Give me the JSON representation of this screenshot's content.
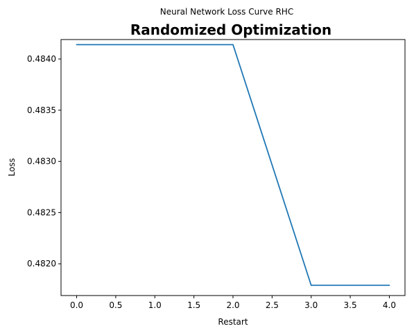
{
  "chart_data": {
    "type": "line",
    "suptitle": "Neural Network Loss Curve RHC",
    "title": "Randomized Optimization",
    "xlabel": "Restart",
    "ylabel": "Loss",
    "xlim": [
      -0.2,
      4.2
    ],
    "ylim": [
      0.48169,
      0.48419
    ],
    "xticks": [
      0.0,
      0.5,
      1.0,
      1.5,
      2.0,
      2.5,
      3.0,
      3.5,
      4.0
    ],
    "xtick_labels": [
      "0.0",
      "0.5",
      "1.0",
      "1.5",
      "2.0",
      "2.5",
      "3.0",
      "3.5",
      "4.0"
    ],
    "yticks": [
      0.482,
      0.4825,
      0.483,
      0.4835,
      0.484
    ],
    "ytick_labels": [
      "0.4820",
      "0.4825",
      "0.4830",
      "0.4835",
      "0.4840"
    ],
    "grid": false,
    "series": [
      {
        "color": "#1f77b4",
        "x": [
          0,
          1,
          2,
          3,
          4
        ],
        "y": [
          0.48414,
          0.48414,
          0.48414,
          0.48179,
          0.48179
        ]
      }
    ]
  }
}
